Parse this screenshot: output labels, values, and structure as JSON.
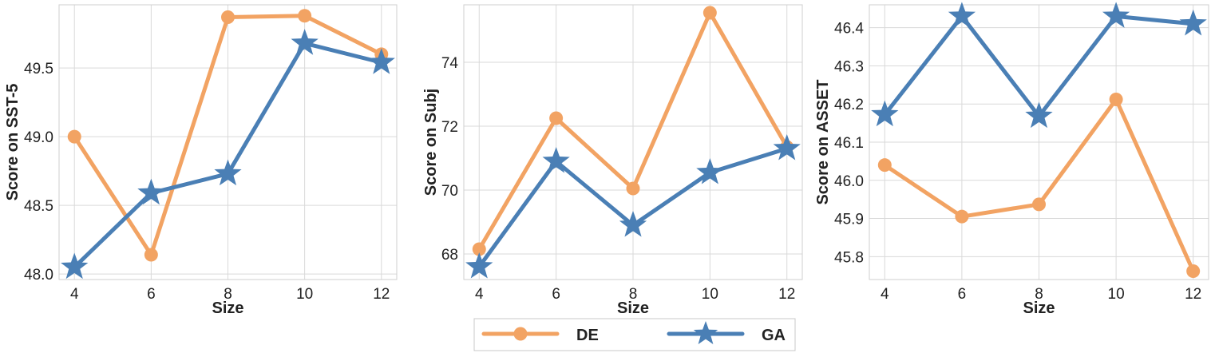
{
  "chart_data": [
    {
      "type": "line",
      "xlabel": "Size",
      "ylabel": "Score on SST-5",
      "x": [
        4,
        6,
        8,
        10,
        12
      ],
      "xticks": [
        "4",
        "6",
        "8",
        "10",
        "12"
      ],
      "xlim": [
        3.6,
        12.4
      ],
      "ylim": [
        47.96,
        49.96
      ],
      "yticks": [
        "48.0",
        "48.5",
        "49.0",
        "49.5"
      ],
      "ytick_values": [
        48.0,
        48.5,
        49.0,
        49.5
      ],
      "series": [
        {
          "name": "DE",
          "values": [
            49.0,
            48.14,
            49.87,
            49.88,
            49.6
          ]
        },
        {
          "name": "GA",
          "values": [
            48.05,
            48.59,
            48.73,
            49.68,
            49.54
          ]
        }
      ]
    },
    {
      "type": "line",
      "xlabel": "Size",
      "ylabel": "Score on Subj",
      "x": [
        4,
        6,
        8,
        10,
        12
      ],
      "xticks": [
        "4",
        "6",
        "8",
        "10",
        "12"
      ],
      "xlim": [
        3.6,
        12.4
      ],
      "ylim": [
        67.2,
        75.8
      ],
      "yticks": [
        "68",
        "70",
        "72",
        "74"
      ],
      "ytick_values": [
        68,
        70,
        72,
        74
      ],
      "series": [
        {
          "name": "DE",
          "values": [
            68.15,
            72.25,
            70.05,
            75.55,
            71.35
          ]
        },
        {
          "name": "GA",
          "values": [
            67.6,
            70.9,
            68.9,
            70.55,
            71.3
          ]
        }
      ]
    },
    {
      "type": "line",
      "xlabel": "Size",
      "ylabel": "Score on ASSET",
      "x": [
        4,
        6,
        8,
        10,
        12
      ],
      "xticks": [
        "4",
        "6",
        "8",
        "10",
        "12"
      ],
      "xlim": [
        3.6,
        12.4
      ],
      "ylim": [
        45.74,
        46.46
      ],
      "yticks": [
        "45.8",
        "45.9",
        "46.0",
        "46.1",
        "46.2",
        "46.3",
        "46.4"
      ],
      "ytick_values": [
        45.8,
        45.9,
        46.0,
        46.1,
        46.2,
        46.3,
        46.4
      ],
      "series": [
        {
          "name": "DE",
          "values": [
            46.04,
            45.905,
            45.937,
            46.212,
            45.762
          ]
        },
        {
          "name": "GA",
          "values": [
            46.172,
            46.43,
            46.168,
            46.43,
            46.41
          ]
        }
      ]
    }
  ],
  "legend": {
    "placement": "bottom-center",
    "entries": [
      {
        "label": "DE",
        "color": "#F2A363",
        "marker": "circle"
      },
      {
        "label": "GA",
        "color": "#4A7FB5",
        "marker": "star"
      }
    ]
  }
}
